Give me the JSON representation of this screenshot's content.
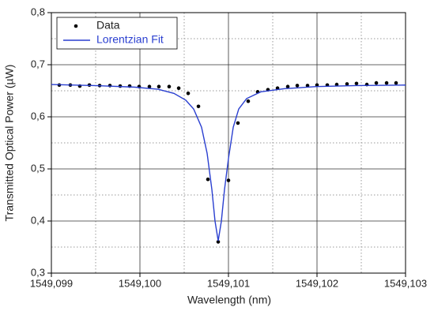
{
  "chart_data": {
    "type": "scatter",
    "x_label": "Wavelength (nm)",
    "y_label": "Transmitted Optical Power (µW)",
    "xlim": [
      1549.099,
      1549.103
    ],
    "ylim": [
      0.3,
      0.8
    ],
    "xticks": [
      {
        "value": 1549.099,
        "label": "1549,099"
      },
      {
        "value": 1549.1,
        "label": "1549,100"
      },
      {
        "value": 1549.101,
        "label": "1549,101"
      },
      {
        "value": 1549.102,
        "label": "1549,102"
      },
      {
        "value": 1549.103,
        "label": "1549,103"
      }
    ],
    "yticks": [
      {
        "value": 0.3,
        "label": "0,3"
      },
      {
        "value": 0.4,
        "label": "0,4"
      },
      {
        "value": 0.5,
        "label": "0,5"
      },
      {
        "value": 0.6,
        "label": "0,6"
      },
      {
        "value": 0.7,
        "label": "0,7"
      },
      {
        "value": 0.8,
        "label": "0,8"
      }
    ],
    "minor_xticks": [
      1549.0995,
      1549.1005,
      1549.1015,
      1549.1025
    ],
    "minor_yticks": [
      0.35,
      0.45,
      0.55,
      0.65,
      0.75
    ],
    "grid": true,
    "legend": "upper left",
    "series": [
      {
        "name": "Data",
        "type": "scatter",
        "color": "#000000",
        "x": [
          1549.099089,
          1549.099214,
          1549.099321,
          1549.099429,
          1549.099545,
          1549.099661,
          1549.099777,
          1549.099884,
          1549.099991,
          1549.100107,
          1549.100214,
          1549.10033,
          1549.100438,
          1549.100545,
          1549.100661,
          1549.100768,
          1549.100884,
          1549.101,
          1549.101107,
          1549.101223,
          1549.10133,
          1549.101446,
          1549.101554,
          1549.10167,
          1549.101777,
          1549.101893,
          1549.102,
          1549.102116,
          1549.102223,
          1549.102339,
          1549.102446,
          1549.102563,
          1549.10267,
          1549.102786,
          1549.102893
        ],
        "values": [
          0.661,
          0.661,
          0.659,
          0.661,
          0.66,
          0.66,
          0.659,
          0.659,
          0.658,
          0.658,
          0.658,
          0.658,
          0.655,
          0.645,
          0.62,
          0.48,
          0.36,
          0.478,
          0.588,
          0.63,
          0.648,
          0.652,
          0.655,
          0.658,
          0.66,
          0.66,
          0.661,
          0.661,
          0.662,
          0.663,
          0.664,
          0.662,
          0.665,
          0.665,
          0.665
        ]
      },
      {
        "name": "Lorentzian Fit",
        "type": "line",
        "color": "#2a3fd0",
        "x": [
          1549.099,
          1549.099491,
          1549.099938,
          1549.100205,
          1549.100384,
          1549.100518,
          1549.100607,
          1549.100696,
          1549.100759,
          1549.100813,
          1549.100848,
          1549.100884,
          1549.10092,
          1549.100955,
          1549.101,
          1549.101054,
          1549.101116,
          1549.101205,
          1549.101366,
          1549.101634,
          1549.101991,
          1549.102438,
          1549.103
        ],
        "values": [
          0.662,
          0.66,
          0.657,
          0.653,
          0.645,
          0.632,
          0.615,
          0.58,
          0.53,
          0.46,
          0.4,
          0.362,
          0.4,
          0.46,
          0.52,
          0.58,
          0.615,
          0.635,
          0.648,
          0.654,
          0.658,
          0.66,
          0.661
        ]
      }
    ]
  }
}
